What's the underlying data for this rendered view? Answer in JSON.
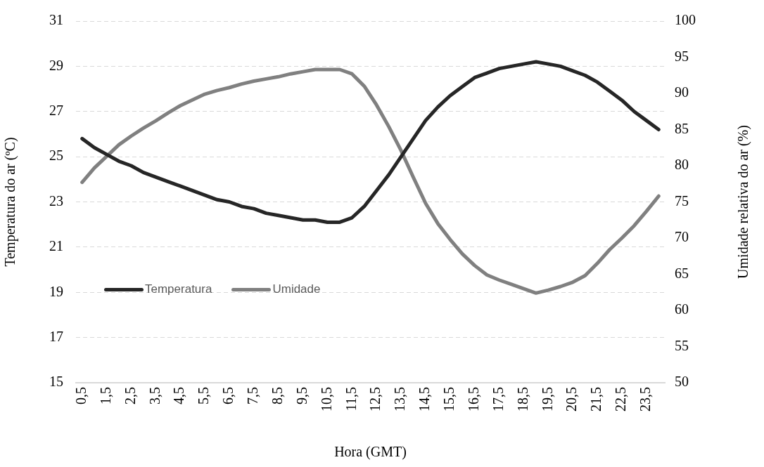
{
  "chart_data": {
    "type": "line",
    "xlabel": "Hora (GMT)",
    "ylabel": "Temperatura do ar (ºC)",
    "y2label": "Umidade relativa do ar (%)",
    "categories": [
      "0,5",
      null,
      "1,5",
      null,
      "2,5",
      null,
      "3,5",
      null,
      "4,5",
      null,
      "5,5",
      null,
      "6,5",
      null,
      "7,5",
      null,
      "8,5",
      null,
      "9,5",
      null,
      "10,5",
      null,
      "11,5",
      null,
      "12,5",
      null,
      "13,5",
      null,
      "14,5",
      null,
      "15,5",
      null,
      "16,5",
      null,
      "17,5",
      null,
      "18,5",
      null,
      "19,5",
      null,
      "20,5",
      null,
      "21,5",
      null,
      "22,5",
      null,
      "23,5",
      null
    ],
    "series": [
      {
        "name": "Temperatura",
        "color": "#262626",
        "values": [
          25.8,
          25.4,
          25.1,
          24.8,
          24.6,
          24.3,
          24.1,
          23.9,
          23.7,
          23.5,
          23.3,
          23.1,
          23.0,
          22.8,
          22.7,
          22.5,
          22.4,
          22.3,
          22.2,
          22.2,
          22.1,
          22.1,
          22.3,
          22.8,
          23.5,
          24.2,
          25.0,
          25.8,
          26.6,
          27.2,
          27.7,
          28.1,
          28.5,
          28.7,
          28.9,
          29.0,
          29.1,
          29.2,
          29.1,
          29.0,
          28.8,
          28.6,
          28.3,
          27.9,
          27.5,
          27.0,
          26.6,
          26.2
        ]
      },
      {
        "name": "Umidade",
        "color": "#808080",
        "axis": "y2",
        "values": [
          77.7,
          79.7,
          81.3,
          82.9,
          84.1,
          85.2,
          86.2,
          87.3,
          88.3,
          89.1,
          89.9,
          90.4,
          90.8,
          91.3,
          91.7,
          92.0,
          92.3,
          92.7,
          93.0,
          93.3,
          93.3,
          93.3,
          92.7,
          91.0,
          88.4,
          85.4,
          82.1,
          78.4,
          74.8,
          72.0,
          69.8,
          67.8,
          66.2,
          64.9,
          64.2,
          63.6,
          63.0,
          62.4,
          62.8,
          63.3,
          63.9,
          64.8,
          66.5,
          68.4,
          70.0,
          71.7,
          73.7,
          75.8
        ]
      }
    ],
    "ylim": [
      15,
      31
    ],
    "yticks": [
      15,
      17,
      19,
      21,
      23,
      25,
      27,
      29,
      31
    ],
    "y2lim": [
      50,
      100
    ],
    "y2ticks": [
      50,
      55,
      60,
      65,
      70,
      75,
      80,
      85,
      90,
      95,
      100
    ],
    "grid": "y",
    "legend": "left",
    "marker": "none",
    "line_style": "solid"
  }
}
